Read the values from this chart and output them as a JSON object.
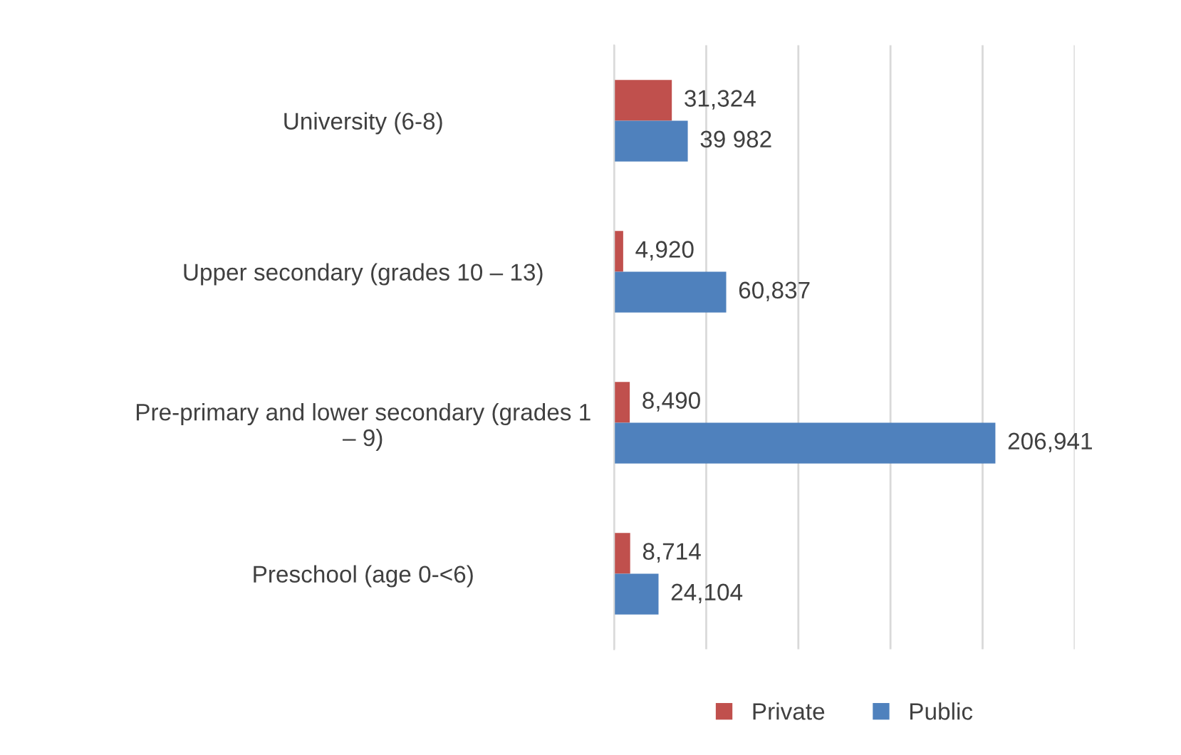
{
  "chart_data": {
    "type": "bar",
    "orientation": "horizontal",
    "categories": [
      "University (6-8)",
      "Upper secondary (grades 10 – 13)",
      "Pre-primary and lower secondary (grades 1\n– 9)",
      "Preschool (age 0-<6)"
    ],
    "series": [
      {
        "name": "Private",
        "color": "#c0504d",
        "values": [
          31324,
          4920,
          8490,
          8714
        ],
        "value_labels": [
          "31,324",
          "4,920",
          "8,490",
          "8,714"
        ]
      },
      {
        "name": "Public",
        "color": "#4f81bd",
        "values": [
          39982,
          60837,
          206941,
          24104
        ],
        "value_labels": [
          "39 982",
          "60,837",
          "206,941",
          "24,104"
        ]
      }
    ],
    "xlim": [
      0,
      250000
    ],
    "xticks": [
      {
        "value": 0,
        "label": null
      },
      {
        "value": 50000,
        "label": null
      },
      {
        "value": 100000,
        "label": null
      },
      {
        "value": 150000,
        "label": null
      },
      {
        "value": 200000,
        "label": null
      },
      {
        "value": 250000,
        "label": null
      }
    ],
    "tick_labels": "y",
    "grid": "x",
    "legend": "bottom"
  }
}
